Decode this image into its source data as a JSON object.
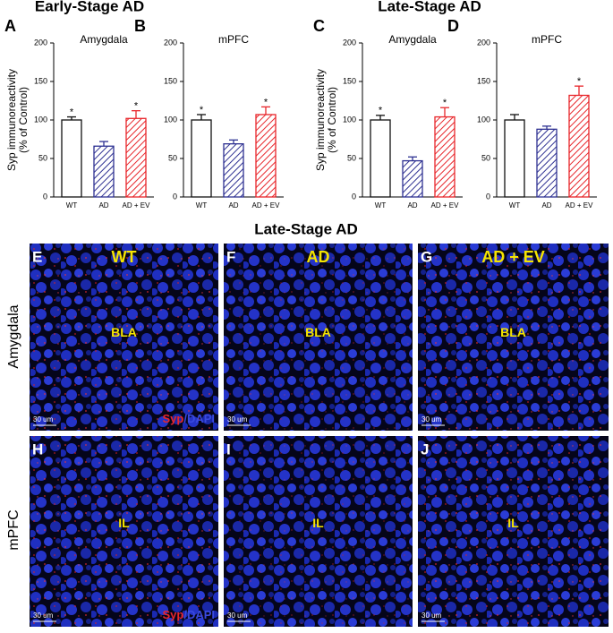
{
  "headers": [
    "Early-Stage AD",
    "Late-Stage AD",
    "Late-Stage AD"
  ],
  "row_labels": [
    "Amygdala",
    "mPFC"
  ],
  "chart_data": [
    {
      "type": "bar",
      "panel": "A",
      "subtitle": "Amygdala",
      "ylabel": [
        "Syp immunoreactivity",
        "(% of Control)"
      ],
      "categories": [
        "WT",
        "AD",
        "AD + EV"
      ],
      "values": [
        100,
        66,
        102
      ],
      "errors": [
        4,
        6,
        10
      ],
      "annotations": [
        "*",
        null,
        "*"
      ],
      "colors": [
        "#111111",
        "#2e3192",
        "#e8262b"
      ],
      "hatch": [
        false,
        true,
        true
      ],
      "ylim": [
        0,
        200
      ],
      "yticks": [
        0,
        50,
        100,
        150,
        200
      ]
    },
    {
      "type": "bar",
      "panel": "B",
      "subtitle": "mPFC",
      "categories": [
        "WT",
        "AD",
        "AD + EV"
      ],
      "values": [
        100,
        69,
        107
      ],
      "errors": [
        7,
        5,
        10
      ],
      "annotations": [
        "*",
        null,
        "*"
      ],
      "colors": [
        "#111111",
        "#2e3192",
        "#e8262b"
      ],
      "hatch": [
        false,
        true,
        true
      ],
      "ylim": [
        0,
        200
      ],
      "yticks": [
        0,
        50,
        100,
        150,
        200
      ]
    },
    {
      "type": "bar",
      "panel": "C",
      "subtitle": "Amygdala",
      "ylabel": [
        "Syp immunoreactivity",
        "(% of Control)"
      ],
      "categories": [
        "WT",
        "AD",
        "AD + EV"
      ],
      "values": [
        100,
        47,
        104
      ],
      "errors": [
        6,
        5,
        12
      ],
      "annotations": [
        "*",
        null,
        "*"
      ],
      "colors": [
        "#111111",
        "#2e3192",
        "#e8262b"
      ],
      "hatch": [
        false,
        true,
        true
      ],
      "ylim": [
        0,
        200
      ],
      "yticks": [
        0,
        50,
        100,
        150,
        200
      ]
    },
    {
      "type": "bar",
      "panel": "D",
      "subtitle": "mPFC",
      "categories": [
        "WT",
        "AD",
        "AD + EV"
      ],
      "values": [
        100,
        88,
        132
      ],
      "errors": [
        7,
        4,
        12
      ],
      "annotations": [
        null,
        null,
        "*"
      ],
      "colors": [
        "#111111",
        "#2e3192",
        "#e8262b"
      ],
      "hatch": [
        false,
        true,
        true
      ],
      "ylim": [
        0,
        200
      ],
      "yticks": [
        0,
        50,
        100,
        150,
        200
      ]
    }
  ],
  "images": [
    {
      "letter": "E",
      "label": "WT",
      "region": "BLA",
      "scale": "30 um",
      "stain": [
        "Syp",
        "/DAPI"
      ]
    },
    {
      "letter": "F",
      "label": "AD",
      "region": "BLA",
      "scale": "30 um"
    },
    {
      "letter": "G",
      "label": "AD + EV",
      "region": "BLA",
      "scale": "30 um"
    },
    {
      "letter": "H",
      "region": "IL",
      "scale": "30 um",
      "stain": [
        "Syp",
        "/DAPI"
      ]
    },
    {
      "letter": "I",
      "region": "IL",
      "scale": "30 um"
    },
    {
      "letter": "J",
      "region": "IL",
      "scale": "30 um"
    }
  ]
}
